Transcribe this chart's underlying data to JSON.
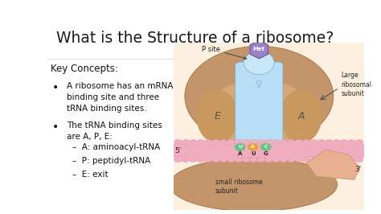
{
  "title": "What is the Structure of a ribosome?",
  "title_fontsize": 13.5,
  "title_color": "#1a1a1a",
  "bg_color": "#ffffff",
  "text_color": "#111111",
  "key_concepts_label": "Key Concepts:",
  "bullet1": "A ribosome has an mRNA\nbinding site and three\ntRNA binding sites.",
  "bullet2": "The tRNA binding sites\nare A, P, E:",
  "sub1": "A: aminoacyl-tRNA",
  "sub2": "P: peptidyl-tRNA",
  "sub3": "E: exit",
  "text_fontsize": 7.5,
  "label_fontsize": 8.5,
  "diagram_bg": "#fdf0e0",
  "large_subunit_color": "#c4956a",
  "small_subunit_color": "#c4956a",
  "mrna_color": "#f0adc0",
  "trna_color": "#b8def5",
  "met_color": "#9b82c8",
  "codon_u_color": "#6abf8a",
  "codon_a_color": "#e8a040",
  "codon_c_color": "#6abf8a"
}
